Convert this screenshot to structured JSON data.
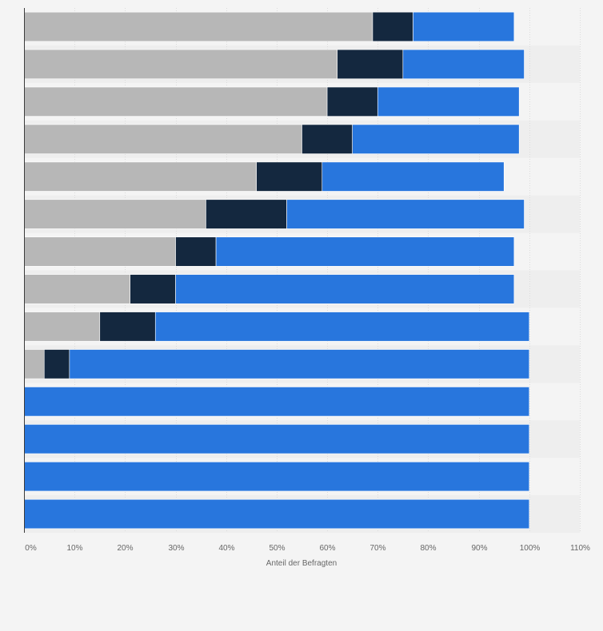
{
  "chart_data": {
    "type": "bar",
    "orientation": "horizontal",
    "stacked": true,
    "categories": [
      "",
      "",
      "",
      "",
      "",
      "",
      "",
      "",
      "",
      "",
      "",
      "",
      "",
      ""
    ],
    "series": [
      {
        "color": "#b7b7b7",
        "values": [
          69,
          62,
          60,
          55,
          46,
          36,
          30,
          21,
          15,
          4,
          0,
          0,
          0,
          0
        ]
      },
      {
        "color": "#14283f",
        "values": [
          8,
          13,
          10,
          10,
          13,
          16,
          8,
          9,
          11,
          5,
          0,
          0,
          0,
          0
        ]
      },
      {
        "color": "#2876dd",
        "values": [
          20,
          24,
          28,
          33,
          36,
          47,
          59,
          67,
          74,
          91,
          100,
          100,
          100,
          100
        ]
      }
    ],
    "xlim": [
      0,
      110
    ],
    "xticks": [
      "0%",
      "10%",
      "20%",
      "30%",
      "40%",
      "50%",
      "60%",
      "70%",
      "80%",
      "90%",
      "100%",
      "110%"
    ],
    "xlabel": "Anteil der Befragten",
    "ylabel": "",
    "title": "",
    "grid": true
  }
}
